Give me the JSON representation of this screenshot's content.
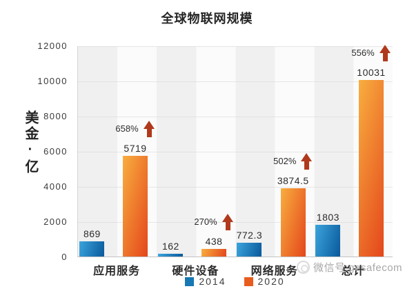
{
  "chart_data": {
    "type": "bar",
    "title": "全球物联网规模",
    "ylabel": "美金·亿",
    "xlabel": "",
    "categories": [
      "应用服务",
      "硬件设备",
      "网络服务",
      "总计"
    ],
    "series": [
      {
        "name": "2014",
        "values": [
          869,
          162,
          772.3,
          1803
        ],
        "gradient": [
          "#3BA4DC",
          "#0A599B"
        ],
        "legend_color": "#1778B5"
      },
      {
        "name": "2020",
        "values": [
          5719,
          438,
          3874.5,
          10031
        ],
        "gradient": [
          "#F8AE3F",
          "#E4461B"
        ],
        "legend_color": "#E85C1E"
      }
    ],
    "growth_labels": [
      "658%",
      "270%",
      "502%",
      "556%"
    ],
    "growth_series": "2020",
    "arrow_color": "#B0391C",
    "ylim": [
      0,
      12000
    ],
    "yticks": [
      0,
      2000,
      4000,
      6000,
      8000,
      10000,
      12000
    ],
    "grid": true,
    "legend_position": "bottom"
  },
  "watermark": {
    "text": "微信号:gesafecom"
  }
}
